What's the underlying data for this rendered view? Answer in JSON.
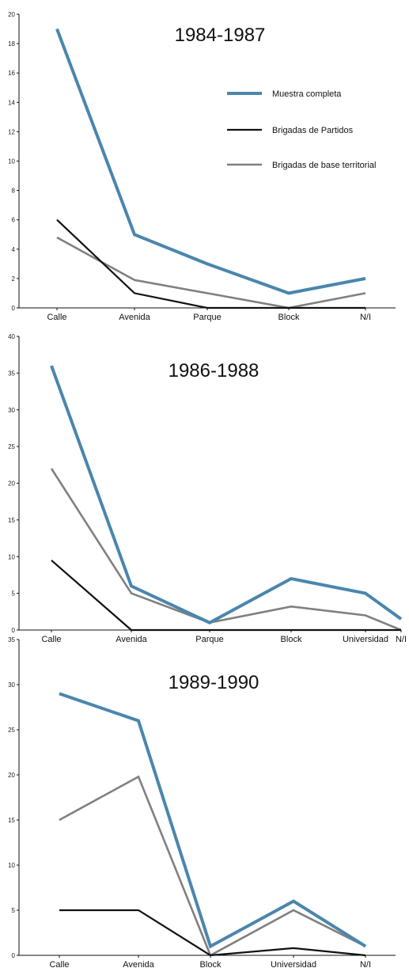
{
  "colors": {
    "muestra": "#4a86ad",
    "partidos": "#111111",
    "territorial": "#808080"
  },
  "legend": [
    {
      "name": "Muestra completa",
      "color": "#4a86ad"
    },
    {
      "name": "Brigadas de Partidos",
      "color": "#111111"
    },
    {
      "name": "Brigadas de base territorial",
      "color": "#808080"
    }
  ],
  "chart_data": [
    {
      "type": "line",
      "title": "1984-1987",
      "categories": [
        "Calle",
        "Avenida",
        "Parque",
        "Block",
        "N/I"
      ],
      "ylim": [
        0,
        20
      ],
      "yticks": [
        0,
        2,
        4,
        6,
        8,
        10,
        12,
        14,
        16,
        18,
        20
      ],
      "legend_position": "top-right",
      "series": [
        {
          "name": "Muestra completa",
          "color": "#4a86ad",
          "values": [
            19,
            5,
            3,
            1,
            2
          ]
        },
        {
          "name": "Brigadas de Partidos",
          "color": "#111111",
          "values": [
            6,
            1,
            0,
            0,
            0
          ]
        },
        {
          "name": "Brigadas de base territorial",
          "color": "#808080",
          "values": [
            4.8,
            1.9,
            1,
            0,
            1
          ]
        }
      ]
    },
    {
      "type": "line",
      "title": "1986-1988",
      "categories": [
        "Calle",
        "Avenida",
        "Parque",
        "Block",
        "Universidad",
        "N/I"
      ],
      "ylim": [
        0,
        40
      ],
      "yticks": [
        0,
        5,
        10,
        15,
        20,
        25,
        30,
        35,
        40
      ],
      "legend_position": "none",
      "series": [
        {
          "name": "Muestra completa",
          "color": "#4a86ad",
          "values": [
            36,
            6,
            1,
            7,
            5,
            1.5
          ]
        },
        {
          "name": "Brigadas de Partidos",
          "color": "#111111",
          "values": [
            9.5,
            0,
            0,
            0,
            0,
            0
          ]
        },
        {
          "name": "Brigadas de base territorial",
          "color": "#808080",
          "values": [
            22,
            5,
            1,
            3.2,
            2,
            0
          ]
        }
      ]
    },
    {
      "type": "line",
      "title": "1989-1990",
      "categories": [
        "Calle",
        "Avenida",
        "Block",
        "Universidad",
        "N/I"
      ],
      "ylim": [
        0,
        35
      ],
      "yticks": [
        0,
        5,
        10,
        15,
        20,
        25,
        30,
        35
      ],
      "legend_position": "none",
      "series": [
        {
          "name": "Muestra completa",
          "color": "#4a86ad",
          "values": [
            29,
            26,
            1,
            6,
            1
          ]
        },
        {
          "name": "Brigadas de Partidos",
          "color": "#111111",
          "values": [
            5,
            5,
            0,
            0.8,
            0
          ]
        },
        {
          "name": "Brigadas de base territorial",
          "color": "#808080",
          "values": [
            15,
            19.8,
            0,
            5,
            1
          ]
        }
      ]
    }
  ]
}
